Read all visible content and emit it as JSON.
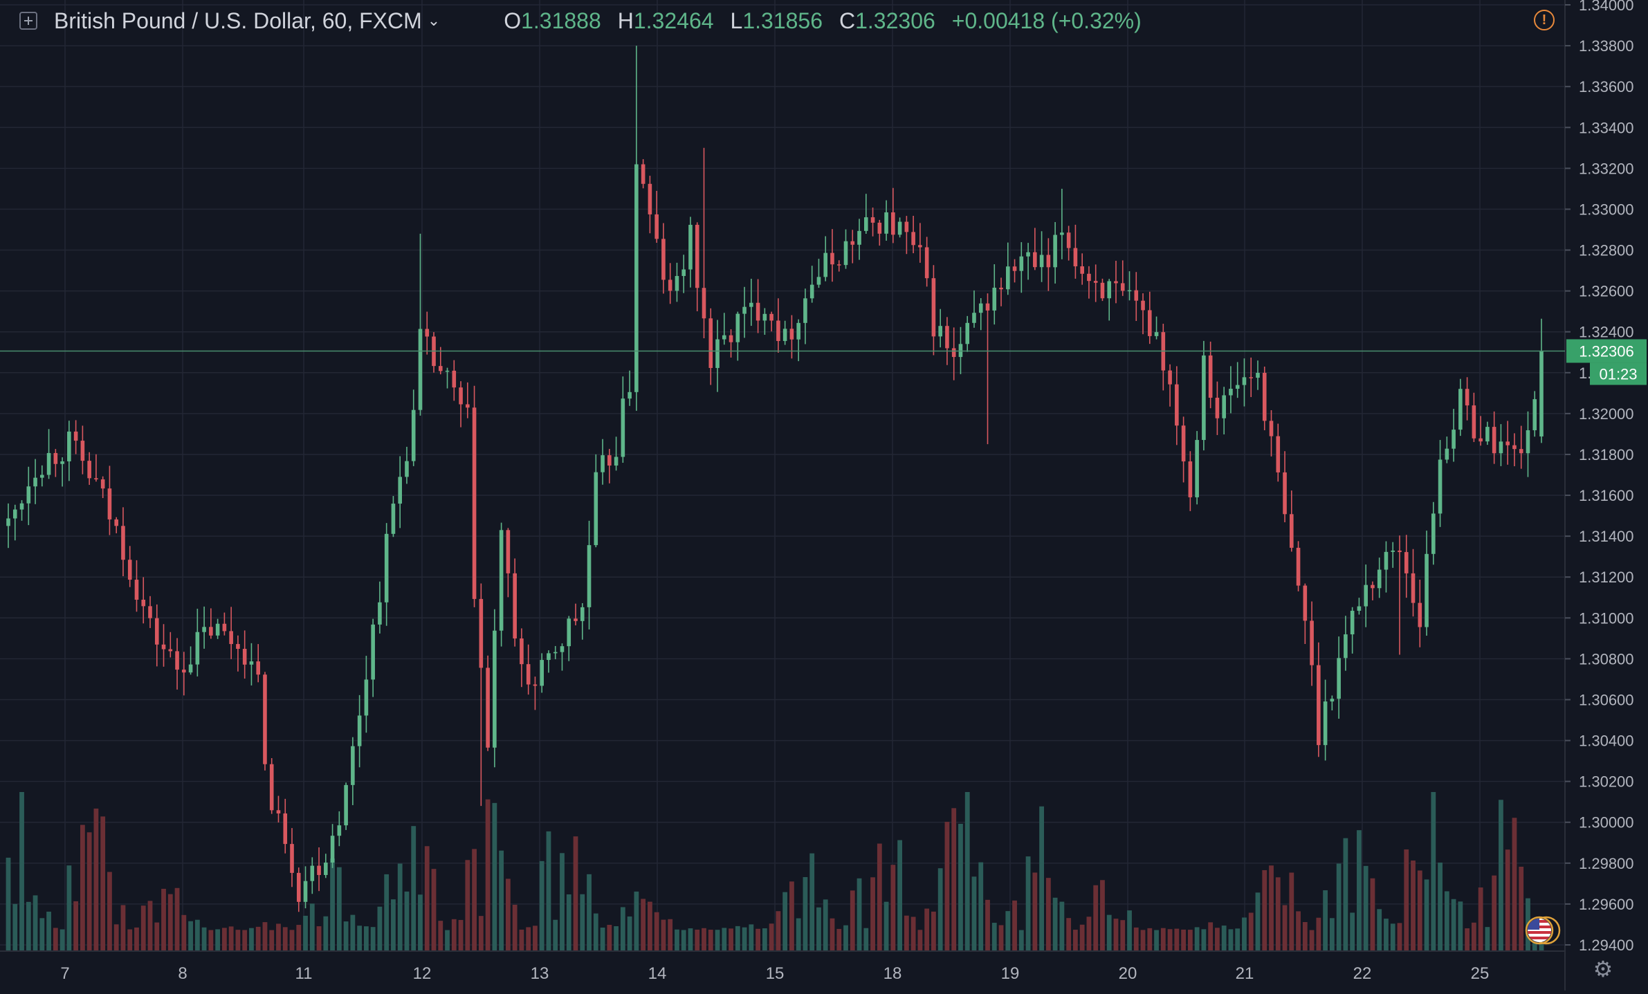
{
  "header": {
    "symbol": "British Pound / U.S. Dollar, 60, FXCM",
    "open_label": "O",
    "open": "1.31888",
    "high_label": "H",
    "high": "1.32464",
    "low_label": "L",
    "low": "1.31856",
    "close_label": "C",
    "close": "1.32306",
    "change": "+0.00418 (+0.32%)"
  },
  "icons": {
    "symbol_icon": "plus-square-icon",
    "dropdown_icon": "chevron-down-icon",
    "warning_icon": "warning-icon",
    "settings_icon": "gear-icon",
    "event_icon": "us-flag-icon"
  },
  "colors": {
    "background": "#131722",
    "grid": "#232734",
    "up": "#5fb68a",
    "down": "#d9585f",
    "up_volume": "#2b5c58",
    "down_volume": "#6b2f35",
    "price_line": "#4a8f6e",
    "price_label_bg": "#38a169"
  },
  "chart_data": {
    "type": "candlestick",
    "title": "British Pound / U.S. Dollar, 60, FXCM",
    "xlabel": "",
    "ylabel": "",
    "x_ticks": [
      "7",
      "8",
      "11",
      "12",
      "13",
      "14",
      "15",
      "18",
      "19",
      "20",
      "21",
      "22",
      "25"
    ],
    "y_ticks": [
      "1.34000",
      "1.33800",
      "1.33600",
      "1.33400",
      "1.33200",
      "1.33000",
      "1.32800",
      "1.32600",
      "1.32400",
      "1.32200",
      "1.32000",
      "1.31800",
      "1.31600",
      "1.31400",
      "1.31200",
      "1.31000",
      "1.30800",
      "1.30600",
      "1.30400",
      "1.30200",
      "1.30000",
      "1.29800",
      "1.29600",
      "1.29400"
    ],
    "ylim": [
      1.294,
      1.34
    ],
    "grid": true,
    "current_price": "1.32306",
    "countdown": "01:23",
    "path": [
      [
        0,
        1.3145
      ],
      [
        4,
        1.3175
      ],
      [
        9,
        1.3185
      ],
      [
        13,
        1.3165
      ],
      [
        17,
        1.3135
      ],
      [
        21,
        1.3095
      ],
      [
        25,
        1.3075
      ],
      [
        30,
        1.3095
      ],
      [
        35,
        1.3085
      ],
      [
        37,
        1.3065
      ],
      [
        39,
        1.3005
      ],
      [
        41,
        1.2995
      ],
      [
        43,
        1.2968
      ],
      [
        47,
        1.2985
      ],
      [
        50,
        1.3015
      ],
      [
        53,
        1.3075
      ],
      [
        57,
        1.3155
      ],
      [
        60,
        1.3198
      ],
      [
        61,
        1.3235
      ],
      [
        65,
        1.3215
      ],
      [
        68,
        1.3195
      ],
      [
        69,
        1.3115
      ],
      [
        71,
        1.3035
      ],
      [
        73,
        1.3145
      ],
      [
        75,
        1.3085
      ],
      [
        78,
        1.3065
      ],
      [
        81,
        1.3085
      ],
      [
        85,
        1.3105
      ],
      [
        87,
        1.3165
      ],
      [
        90,
        1.3185
      ],
      [
        92,
        1.3215
      ],
      [
        93,
        1.3325
      ],
      [
        95,
        1.3295
      ],
      [
        98,
        1.3255
      ],
      [
        101,
        1.3285
      ],
      [
        104,
        1.3225
      ],
      [
        108,
        1.3245
      ],
      [
        112,
        1.3255
      ],
      [
        115,
        1.3235
      ],
      [
        119,
        1.3265
      ],
      [
        122,
        1.3275
      ],
      [
        125,
        1.3285
      ],
      [
        129,
        1.3295
      ],
      [
        132,
        1.329
      ],
      [
        135,
        1.3275
      ],
      [
        137,
        1.3245
      ],
      [
        140,
        1.3225
      ],
      [
        143,
        1.3245
      ],
      [
        146,
        1.326
      ],
      [
        150,
        1.3275
      ],
      [
        154,
        1.327
      ],
      [
        156,
        1.329
      ],
      [
        159,
        1.327
      ],
      [
        163,
        1.326
      ],
      [
        167,
        1.325
      ],
      [
        170,
        1.324
      ],
      [
        173,
        1.32
      ],
      [
        175,
        1.316
      ],
      [
        177,
        1.323
      ],
      [
        179,
        1.32
      ],
      [
        182,
        1.3215
      ],
      [
        185,
        1.322
      ],
      [
        187,
        1.3185
      ],
      [
        190,
        1.313
      ],
      [
        192,
        1.31
      ],
      [
        194,
        1.3045
      ],
      [
        197,
        1.308
      ],
      [
        200,
        1.311
      ],
      [
        203,
        1.3125
      ],
      [
        206,
        1.3135
      ],
      [
        209,
        1.31
      ],
      [
        212,
        1.318
      ],
      [
        215,
        1.3205
      ],
      [
        218,
        1.319
      ],
      [
        221,
        1.3185
      ],
      [
        223,
        1.318
      ],
      [
        226,
        1.32
      ],
      [
        227,
        1.323
      ]
    ],
    "volume_series": "hourly tick volume bars in lower panel"
  }
}
